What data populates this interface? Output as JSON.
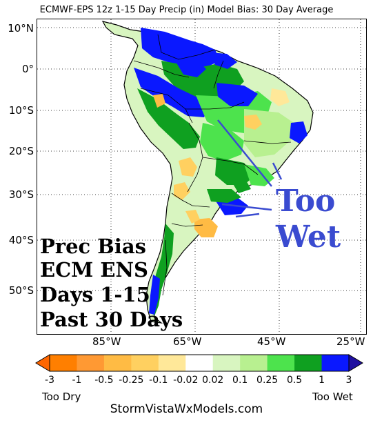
{
  "title": "ECMWF-EPS 12z 1-15 Day Precip (in) Model Bias: 30 Day Average",
  "lat_ticks": [
    "10°N",
    "0°",
    "10°S",
    "20°S",
    "30°S",
    "40°S",
    "50°S"
  ],
  "lon_ticks": [
    "85°W",
    "65°W",
    "45°W",
    "25°W"
  ],
  "annotation": {
    "big_label_line1": "Too",
    "big_label_line2": "Wet",
    "color": "#3a4bd0"
  },
  "info_box": [
    "Prec Bias",
    "ECM ENS",
    "Days 1-15",
    "Past 30 Days"
  ],
  "colorbar": {
    "labels": [
      "-3",
      "-1",
      "-0.5",
      "-0.25",
      "-0.1",
      "-0.02",
      "0.02",
      "0.1",
      "0.25",
      "0.5",
      "1",
      "3"
    ],
    "colors": [
      "#ff7f00",
      "#ff9933",
      "#ffbb44",
      "#ffd060",
      "#ffe899",
      "#ffffff",
      "#d8f5c0",
      "#b8f090",
      "#4de34d",
      "#0fa020",
      "#0a18ff"
    ],
    "under_color": "#ff6600",
    "over_color": "#2010a0",
    "left_caption": "Too Dry",
    "right_caption": "Too Wet"
  },
  "footer": "StormVistaWxModels.com"
}
